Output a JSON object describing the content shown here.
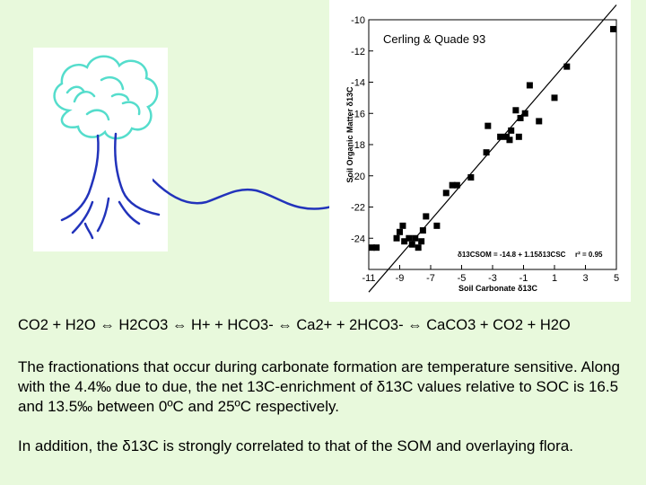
{
  "chart_data": {
    "type": "scatter",
    "title": "Cerling & Quade 93",
    "xlabel": "Soil Carbonate δ13C",
    "ylabel": "Soil Organic Matter δ13C",
    "xlim": [
      -11,
      5
    ],
    "ylim": [
      -26,
      -10
    ],
    "x_ticks": [
      -11,
      -9,
      -7,
      -5,
      -3,
      -1,
      1,
      3,
      5
    ],
    "y_ticks": [
      -10,
      -12,
      -14,
      -16,
      -18,
      -20,
      -22,
      -24
    ],
    "regression": {
      "equation": "δ13CSOM = -14.8 + 1.15δ13CSC",
      "r2": "r² = 0.95",
      "slope": 1.15,
      "intercept": -14.8
    },
    "grid": false,
    "points": [
      {
        "x": -10.8,
        "y": -24.6
      },
      {
        "x": -10.5,
        "y": -24.6
      },
      {
        "x": -9.2,
        "y": -24.0
      },
      {
        "x": -9.0,
        "y": -23.6
      },
      {
        "x": -8.8,
        "y": -23.2
      },
      {
        "x": -8.7,
        "y": -24.2
      },
      {
        "x": -8.4,
        "y": -24.0
      },
      {
        "x": -8.2,
        "y": -24.4
      },
      {
        "x": -8.0,
        "y": -24.0
      },
      {
        "x": -7.8,
        "y": -24.6
      },
      {
        "x": -7.6,
        "y": -24.2
      },
      {
        "x": -7.5,
        "y": -23.5
      },
      {
        "x": -7.3,
        "y": -22.6
      },
      {
        "x": -6.6,
        "y": -23.2
      },
      {
        "x": -6.0,
        "y": -21.1
      },
      {
        "x": -5.6,
        "y": -20.6
      },
      {
        "x": -5.3,
        "y": -20.6
      },
      {
        "x": -4.4,
        "y": -20.1
      },
      {
        "x": -3.4,
        "y": -18.5
      },
      {
        "x": -3.3,
        "y": -16.8
      },
      {
        "x": -2.5,
        "y": -17.5
      },
      {
        "x": -2.1,
        "y": -17.5
      },
      {
        "x": -1.9,
        "y": -17.7
      },
      {
        "x": -1.8,
        "y": -17.1
      },
      {
        "x": -1.5,
        "y": -15.8
      },
      {
        "x": -1.3,
        "y": -17.5
      },
      {
        "x": -1.2,
        "y": -16.3
      },
      {
        "x": -0.9,
        "y": -16.0
      },
      {
        "x": -0.6,
        "y": -14.2
      },
      {
        "x": 0.0,
        "y": -16.5
      },
      {
        "x": 1.0,
        "y": -15.0
      },
      {
        "x": 1.8,
        "y": -13.0
      },
      {
        "x": 4.8,
        "y": -10.6
      }
    ]
  },
  "text": {
    "equation": "CO2 + H2O ⇔ H2CO3 ⇔ H+ + HCO3- ⇔ Ca2+ + 2HCO3- ⇔ CaCO3 + CO2 + H2O",
    "paragraph1": "The fractionations that occur during carbonate formation are temperature sensitive. Along with the 4.4‰ due to due, the net 13C-enrichment of δ13C values relative to SOC is 16.5 and 13.5‰ between 0ºC and 25ºC respectively.",
    "paragraph2": "In addition, the δ13C is strongly correlated to that of the SOM and overlaying flora."
  },
  "colors": {
    "background": "#e8f9dc",
    "tree_canopy": "#55ddcc",
    "tree_trunk": "#2233bb",
    "squiggle": "#2233bb"
  }
}
